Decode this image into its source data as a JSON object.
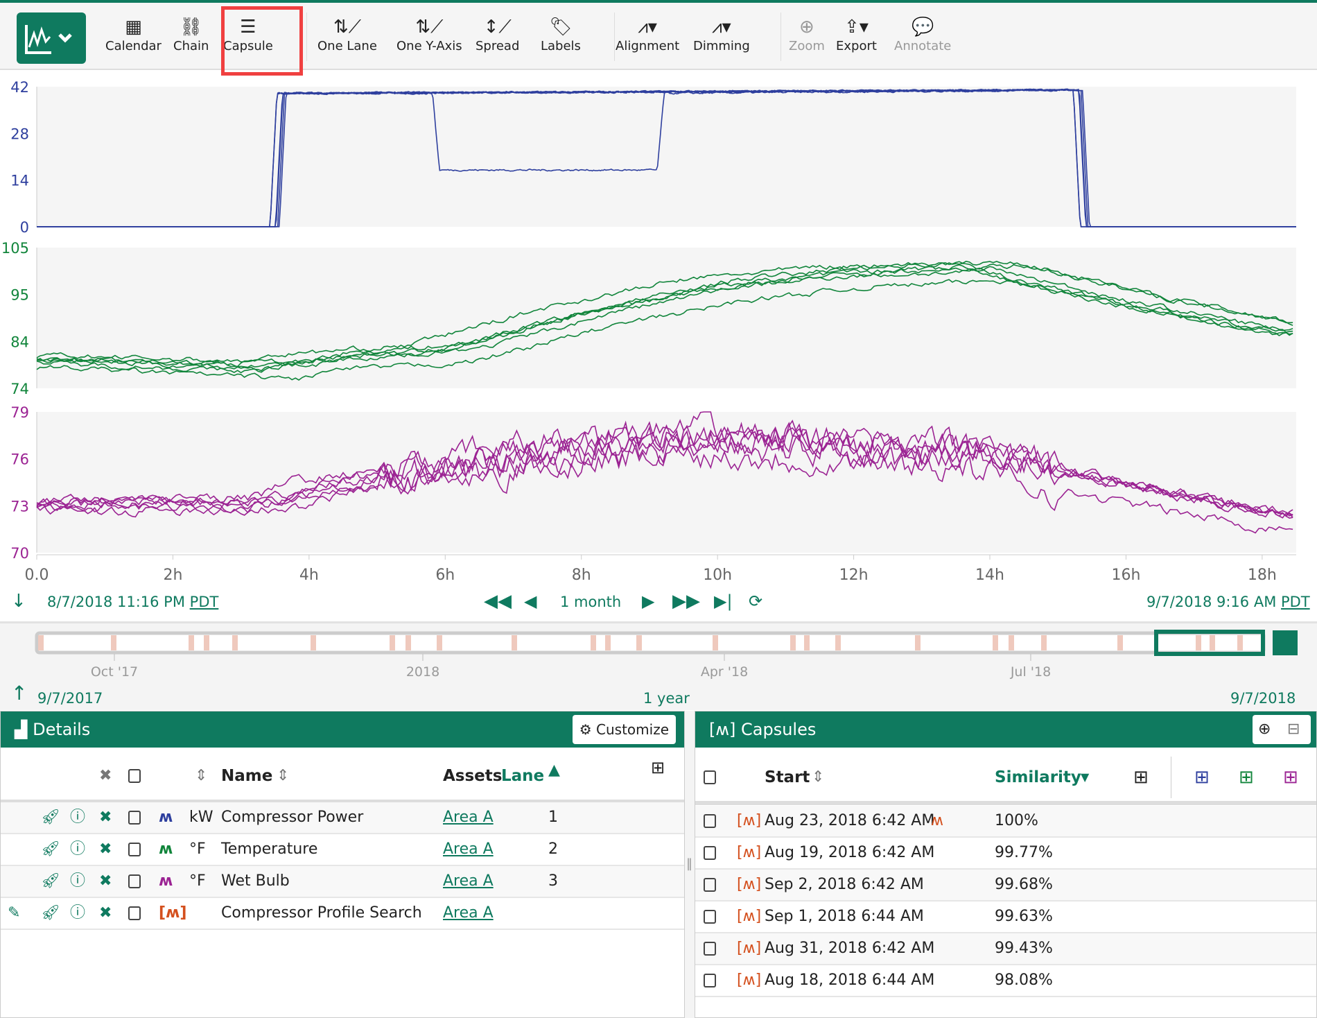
{
  "toolbar": {
    "items": [
      {
        "label": "Calendar",
        "icon": "calendar-icon"
      },
      {
        "label": "Chain",
        "icon": "chain-icon"
      },
      {
        "label": "Capsule",
        "icon": "capsule-icon",
        "highlighted": true
      },
      {
        "label": "One Lane",
        "icon": "one-lane-icon"
      },
      {
        "label": "One Y-Axis",
        "icon": "one-y-axis-icon"
      },
      {
        "label": "Spread",
        "icon": "spread-icon"
      },
      {
        "label": "Labels",
        "icon": "labels-icon"
      },
      {
        "label": "Alignment",
        "icon": "alignment-icon"
      },
      {
        "label": "Dimming",
        "icon": "dimming-icon"
      },
      {
        "label": "Zoom",
        "icon": "zoom-icon",
        "disabled": true
      },
      {
        "label": "Export",
        "icon": "export-icon"
      },
      {
        "label": "Annotate",
        "icon": "annotate-icon",
        "disabled": true
      }
    ]
  },
  "chart_data": {
    "type": "line",
    "xlabel": "",
    "x_ticks": [
      "0.0",
      "2h",
      "4h",
      "6h",
      "8h",
      "10h",
      "12h",
      "14h",
      "16h",
      "18h"
    ],
    "xlim": [
      0,
      18.5
    ],
    "lanes": [
      {
        "color": "#2e3f9e",
        "ylim": [
          0,
          42
        ],
        "y_ticks": [
          "42",
          "28",
          "14",
          "0"
        ],
        "series_profile": {
          "x": [
            0,
            3.5,
            3.6,
            15.3,
            15.4,
            18.5
          ],
          "y": [
            0,
            0,
            40,
            41,
            0,
            0
          ]
        },
        "alt_profile": {
          "x": [
            0,
            3.5,
            3.6,
            5.8,
            5.9,
            9.1,
            9.2,
            15.3,
            15.4,
            18.5
          ],
          "y": [
            0,
            0,
            40,
            40,
            17,
            17,
            40,
            41,
            0,
            0
          ]
        },
        "count": 6
      },
      {
        "color": "#11853b",
        "ylim": [
          74,
          105
        ],
        "y_ticks": [
          "105",
          "95",
          "84",
          "74"
        ],
        "series_profile": {
          "x": [
            0,
            3.5,
            4,
            6,
            8,
            10,
            12,
            14,
            16,
            18.5
          ],
          "y": [
            80,
            78,
            80,
            82,
            90,
            96,
            99,
            100,
            93,
            86
          ]
        },
        "count": 6
      },
      {
        "color": "#9b2393",
        "ylim": [
          70,
          79
        ],
        "y_ticks": [
          "79",
          "76",
          "73",
          "70"
        ],
        "series_profile": {
          "x": [
            0,
            3.5,
            4,
            6,
            8,
            10,
            12,
            14,
            16,
            18.5
          ],
          "y": [
            73,
            73,
            74,
            75,
            76.5,
            77,
            76.5,
            76,
            74,
            72
          ]
        },
        "count": 6
      }
    ]
  },
  "nav": {
    "start": "8/7/2018 11:16 PM",
    "start_tz": "PDT",
    "duration": "1 month",
    "end": "9/7/2018 9:16 AM",
    "end_tz": "PDT"
  },
  "slider": {
    "ticks": [
      "Oct '17",
      "2018",
      "Apr '18",
      "Jul '18"
    ],
    "start": "9/7/2017",
    "duration": "1 year",
    "end": "9/7/2018"
  },
  "details": {
    "title": "Details",
    "customize": "Customize",
    "headers": {
      "name": "Name",
      "assets": "Assets",
      "lane": "Lane"
    },
    "rows": [
      {
        "unit": "kW",
        "name": "Compressor Power",
        "asset": "Area A",
        "lane": "1",
        "color": "#2e3f9e"
      },
      {
        "unit": "°F",
        "name": "Temperature",
        "asset": "Area A",
        "lane": "2",
        "color": "#11853b"
      },
      {
        "unit": "°F",
        "name": "Wet Bulb",
        "asset": "Area A",
        "lane": "3",
        "color": "#9b2393"
      },
      {
        "unit": "",
        "name": "Compressor Profile Search",
        "asset": "Area A",
        "lane": "",
        "color": "#d4501e"
      }
    ]
  },
  "capsules": {
    "title": "Capsules",
    "headers": {
      "start": "Start",
      "similarity": "Similarity"
    },
    "rows": [
      {
        "start": "Aug 23, 2018 6:42 AM",
        "similarity": "100%"
      },
      {
        "start": "Aug 19, 2018 6:42 AM",
        "similarity": "99.77%"
      },
      {
        "start": "Sep 2, 2018 6:42 AM",
        "similarity": "99.68%"
      },
      {
        "start": "Sep 1, 2018 6:44 AM",
        "similarity": "99.63%"
      },
      {
        "start": "Aug 31, 2018 6:42 AM",
        "similarity": "99.43%"
      },
      {
        "start": "Aug 18, 2018 6:44 AM",
        "similarity": "98.08%"
      }
    ]
  }
}
